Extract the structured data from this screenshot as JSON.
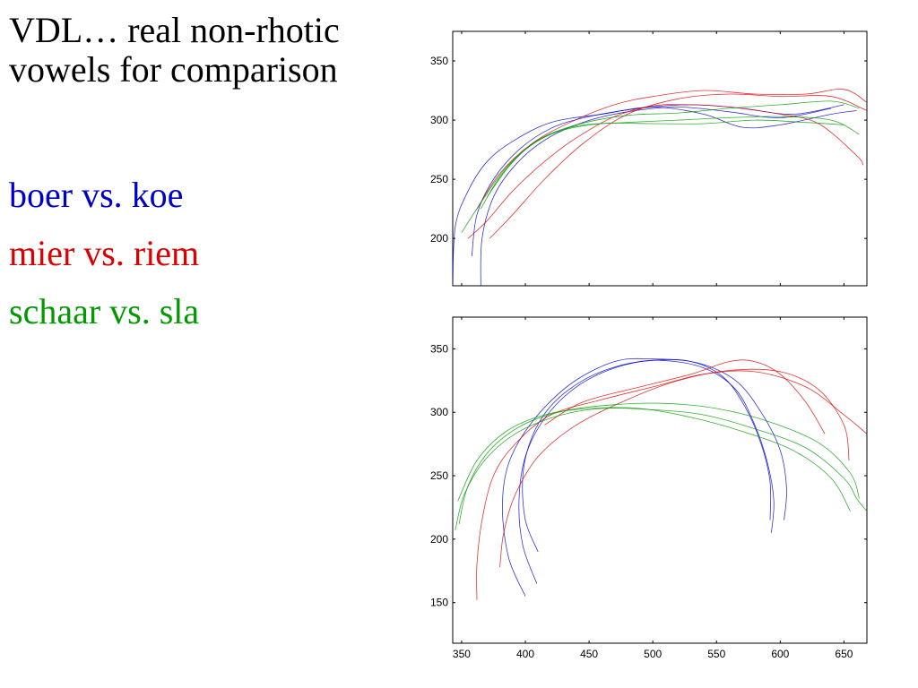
{
  "slide": {
    "title": "VDL… real non-rhotic vowels for comparison",
    "legend": [
      {
        "label": "boer vs. koe",
        "color": "#0000cc"
      },
      {
        "label": "mier vs. riem",
        "color": "#dd0000"
      },
      {
        "label": "schaar vs. sla",
        "color": "#009900"
      }
    ]
  },
  "chart_data": [
    {
      "type": "line",
      "title": "",
      "xlabel": "",
      "ylabel": "",
      "xlim": [
        343,
        668
      ],
      "ylim": [
        160,
        375
      ],
      "x_ticks": [
        350,
        400,
        450,
        500,
        550,
        600,
        650
      ],
      "y_ticks": [
        200,
        250,
        300,
        350
      ],
      "show_x_tick_labels": false,
      "grid": false,
      "series": [
        {
          "group": "boer vs. koe",
          "color": "#0000cc",
          "points": [
            [
              343,
              160
            ],
            [
              345,
              210
            ],
            [
              355,
              240
            ],
            [
              370,
              265
            ],
            [
              390,
              282
            ],
            [
              420,
              298
            ],
            [
              460,
              305
            ],
            [
              500,
              311
            ],
            [
              540,
              305
            ],
            [
              570,
              294
            ],
            [
              600,
              296
            ],
            [
              640,
              305
            ],
            [
              660,
              308
            ]
          ]
        },
        {
          "group": "boer vs. koe",
          "color": "#0000cc",
          "points": [
            [
              358,
              185
            ],
            [
              362,
              220
            ],
            [
              375,
              250
            ],
            [
              395,
              275
            ],
            [
              420,
              293
            ],
            [
              450,
              303
            ],
            [
              490,
              310
            ],
            [
              530,
              313
            ],
            [
              570,
              310
            ],
            [
              610,
              305
            ],
            [
              650,
              313
            ]
          ]
        },
        {
          "group": "boer vs. koe",
          "color": "#0000cc",
          "points": [
            [
              365,
              160
            ],
            [
              366,
              200
            ],
            [
              375,
              235
            ],
            [
              392,
              262
            ],
            [
              415,
              283
            ],
            [
              445,
              298
            ],
            [
              480,
              307
            ],
            [
              520,
              311
            ],
            [
              560,
              307
            ],
            [
              600,
              302
            ],
            [
              640,
              310
            ]
          ]
        },
        {
          "group": "mier vs. riem",
          "color": "#dd0000",
          "points": [
            [
              355,
              200
            ],
            [
              370,
              215
            ],
            [
              390,
              240
            ],
            [
              415,
              265
            ],
            [
              440,
              285
            ],
            [
              470,
              303
            ],
            [
              500,
              312
            ],
            [
              530,
              313
            ],
            [
              560,
              311
            ],
            [
              600,
              305
            ],
            [
              630,
              297
            ],
            [
              660,
              270
            ],
            [
              665,
              262
            ]
          ]
        },
        {
          "group": "mier vs. riem",
          "color": "#dd0000",
          "points": [
            [
              372,
              200
            ],
            [
              390,
              220
            ],
            [
              415,
              250
            ],
            [
              445,
              280
            ],
            [
              480,
              305
            ],
            [
              520,
              318
            ],
            [
              560,
              322
            ],
            [
              600,
              320
            ],
            [
              640,
              320
            ],
            [
              668,
              308
            ]
          ]
        },
        {
          "group": "mier vs. riem",
          "color": "#dd0000",
          "points": [
            [
              362,
              225
            ],
            [
              380,
              255
            ],
            [
              405,
              280
            ],
            [
              435,
              298
            ],
            [
              470,
              313
            ],
            [
              500,
              320
            ],
            [
              540,
              325
            ],
            [
              580,
              322
            ],
            [
              620,
              322
            ],
            [
              650,
              326
            ],
            [
              668,
              315
            ]
          ]
        },
        {
          "group": "schaar vs. sla",
          "color": "#009900",
          "points": [
            [
              350,
              205
            ],
            [
              365,
              230
            ],
            [
              385,
              260
            ],
            [
              410,
              283
            ],
            [
              440,
              295
            ],
            [
              480,
              298
            ],
            [
              520,
              300
            ],
            [
              560,
              302
            ],
            [
              600,
              303
            ],
            [
              640,
              300
            ],
            [
              662,
              288
            ]
          ]
        },
        {
          "group": "schaar vs. sla",
          "color": "#009900",
          "points": [
            [
              365,
              225
            ],
            [
              380,
              252
            ],
            [
              400,
              275
            ],
            [
              425,
              290
            ],
            [
              460,
              297
            ],
            [
              500,
              297
            ],
            [
              540,
              297
            ],
            [
              580,
              300
            ],
            [
              620,
              298
            ],
            [
              650,
              296
            ]
          ]
        },
        {
          "group": "schaar vs. sla",
          "color": "#009900",
          "points": [
            [
              370,
              235
            ],
            [
              388,
              262
            ],
            [
              410,
              283
            ],
            [
              440,
              296
            ],
            [
              480,
              304
            ],
            [
              520,
              306
            ],
            [
              560,
              310
            ],
            [
              600,
              313
            ],
            [
              640,
              316
            ],
            [
              662,
              310
            ]
          ]
        }
      ]
    },
    {
      "type": "line",
      "title": "",
      "xlabel": "",
      "ylabel": "",
      "xlim": [
        343,
        668
      ],
      "ylim": [
        118,
        375
      ],
      "x_ticks": [
        350,
        400,
        450,
        500,
        550,
        600,
        650
      ],
      "y_ticks": [
        150,
        200,
        250,
        300,
        350
      ],
      "show_x_tick_labels": true,
      "grid": false,
      "series": [
        {
          "group": "boer vs. koe",
          "color": "#0000cc",
          "points": [
            [
              410,
              190
            ],
            [
              400,
              215
            ],
            [
              398,
              250
            ],
            [
              405,
              280
            ],
            [
              420,
              305
            ],
            [
              445,
              325
            ],
            [
              475,
              337
            ],
            [
              505,
              341
            ],
            [
              540,
              335
            ],
            [
              565,
              318
            ],
            [
              580,
              290
            ],
            [
              590,
              260
            ],
            [
              595,
              230
            ],
            [
              593,
              205
            ]
          ]
        },
        {
          "group": "boer vs. koe",
          "color": "#0000cc",
          "points": [
            [
              409,
              165
            ],
            [
              398,
              195
            ],
            [
              395,
              230
            ],
            [
              400,
              265
            ],
            [
              415,
              295
            ],
            [
              440,
              320
            ],
            [
              470,
              335
            ],
            [
              500,
              341
            ],
            [
              530,
              340
            ],
            [
              555,
              328
            ],
            [
              572,
              305
            ],
            [
              585,
              275
            ],
            [
              592,
              245
            ],
            [
              592,
              215
            ]
          ]
        },
        {
          "group": "boer vs. koe",
          "color": "#0000cc",
          "points": [
            [
              400,
              155
            ],
            [
              387,
              185
            ],
            [
              382,
              225
            ],
            [
              387,
              260
            ],
            [
              405,
              292
            ],
            [
              435,
              322
            ],
            [
              470,
              340
            ],
            [
              500,
              342
            ],
            [
              535,
              339
            ],
            [
              565,
              325
            ],
            [
              585,
              300
            ],
            [
              600,
              270
            ],
            [
              605,
              240
            ],
            [
              603,
              215
            ]
          ]
        },
        {
          "group": "mier vs. riem",
          "color": "#dd0000",
          "points": [
            [
              362,
              152
            ],
            [
              362,
              180
            ],
            [
              366,
              215
            ],
            [
              375,
              250
            ],
            [
              392,
              275
            ],
            [
              420,
              298
            ],
            [
              460,
              310
            ],
            [
              500,
              320
            ],
            [
              540,
              330
            ],
            [
              580,
              332
            ],
            [
              620,
              320
            ],
            [
              650,
              298
            ],
            [
              668,
              283
            ]
          ]
        },
        {
          "group": "mier vs. riem",
          "color": "#dd0000",
          "points": [
            [
              380,
              178
            ],
            [
              383,
              205
            ],
            [
              392,
              235
            ],
            [
              410,
              265
            ],
            [
              440,
              290
            ],
            [
              480,
              310
            ],
            [
              520,
              325
            ],
            [
              560,
              333
            ],
            [
              600,
              332
            ],
            [
              630,
              318
            ],
            [
              650,
              290
            ],
            [
              654,
              262
            ]
          ]
        },
        {
          "group": "mier vs. riem",
          "color": "#dd0000",
          "points": [
            [
              415,
              290
            ],
            [
              445,
              308
            ],
            [
              490,
              320
            ],
            [
              530,
              330
            ],
            [
              560,
              340
            ],
            [
              580,
              340
            ],
            [
              600,
              330
            ],
            [
              620,
              308
            ],
            [
              635,
              283
            ]
          ]
        },
        {
          "group": "schaar vs. sla",
          "color": "#009900",
          "points": [
            [
              345,
              207
            ],
            [
              352,
              235
            ],
            [
              368,
              262
            ],
            [
              392,
              283
            ],
            [
              425,
              297
            ],
            [
              460,
              303
            ],
            [
              500,
              302
            ],
            [
              540,
              298
            ],
            [
              580,
              287
            ],
            [
              620,
              272
            ],
            [
              650,
              248
            ],
            [
              660,
              232
            ],
            [
              668,
              222
            ]
          ]
        },
        {
          "group": "schaar vs. sla",
          "color": "#009900",
          "points": [
            [
              348,
              212
            ],
            [
              355,
              242
            ],
            [
              372,
              270
            ],
            [
              398,
              290
            ],
            [
              430,
              301
            ],
            [
              470,
              306
            ],
            [
              510,
              307
            ],
            [
              550,
              303
            ],
            [
              590,
              293
            ],
            [
              630,
              276
            ],
            [
              655,
              252
            ],
            [
              662,
              232
            ]
          ]
        },
        {
          "group": "schaar vs. sla",
          "color": "#009900",
          "points": [
            [
              347,
              230
            ],
            [
              362,
              262
            ],
            [
              385,
              285
            ],
            [
              415,
              298
            ],
            [
              450,
              303
            ],
            [
              490,
              303
            ],
            [
              530,
              296
            ],
            [
              570,
              285
            ],
            [
              610,
              270
            ],
            [
              640,
              248
            ],
            [
              655,
              222
            ]
          ]
        }
      ]
    }
  ]
}
